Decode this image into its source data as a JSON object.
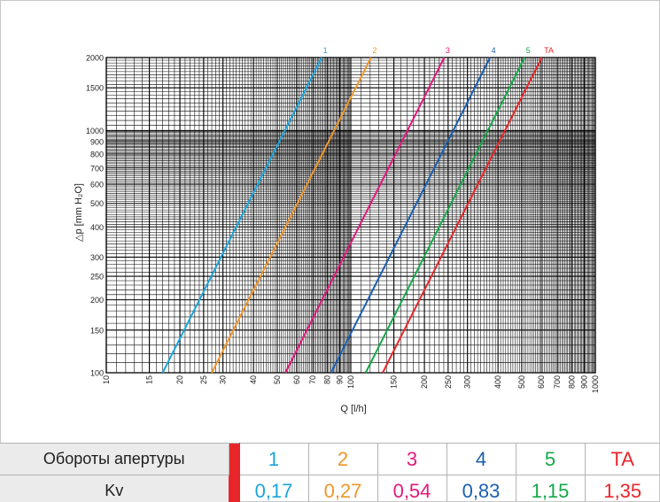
{
  "chart_data": {
    "type": "line",
    "xlabel": "Q [l/h]",
    "ylabel": "△p [mm H₂O]",
    "xscale": "log",
    "yscale": "log",
    "xlim": [
      10,
      1000
    ],
    "ylim": [
      100,
      2000
    ],
    "grid": true,
    "x_ticks": [
      "10",
      "15",
      "20",
      "25",
      "30",
      "40",
      "50",
      "60",
      "70",
      "80",
      "90",
      "100",
      "150",
      "200",
      "250",
      "300",
      "400",
      "500",
      "600",
      "700",
      "800",
      "900",
      "1000"
    ],
    "y_ticks": [
      "100",
      "150",
      "200",
      "250",
      "300",
      "400",
      "500",
      "600",
      "700",
      "800",
      "900",
      "1000",
      "1500",
      "2000"
    ],
    "series": [
      {
        "name": "1",
        "color": "#1aa5dc",
        "kv": 0.17,
        "x": [
          17,
          76
        ],
        "y": [
          100,
          2000
        ]
      },
      {
        "name": "2",
        "color": "#f0962a",
        "kv": 0.27,
        "x": [
          27,
          121
        ],
        "y": [
          100,
          2000
        ]
      },
      {
        "name": "3",
        "color": "#e0197d",
        "kv": 0.54,
        "x": [
          54,
          241
        ],
        "y": [
          100,
          2000
        ]
      },
      {
        "name": "4",
        "color": "#1a5fb0",
        "kv": 0.83,
        "x": [
          83,
          371
        ],
        "y": [
          100,
          2000
        ]
      },
      {
        "name": "5",
        "color": "#16a84a",
        "kv": 1.15,
        "x": [
          115,
          514
        ],
        "y": [
          100,
          2000
        ]
      },
      {
        "name": "TA",
        "color": "#e8262a",
        "kv": 1.35,
        "x": [
          135,
          604
        ],
        "y": [
          100,
          2000
        ]
      }
    ]
  },
  "table": {
    "row1_label": "Обороты апертуры",
    "row2_label": "Kv",
    "cols": [
      {
        "turn": "1",
        "kv": "0,17",
        "color": "#1aa5dc"
      },
      {
        "turn": "2",
        "kv": "0,27",
        "color": "#f0962a"
      },
      {
        "turn": "3",
        "kv": "0,54",
        "color": "#e0197d"
      },
      {
        "turn": "4",
        "kv": "0,83",
        "color": "#1a5fb0"
      },
      {
        "turn": "5",
        "kv": "1,15",
        "color": "#16a84a"
      },
      {
        "turn": "TA",
        "kv": "1,35",
        "color": "#e8262a"
      }
    ]
  }
}
